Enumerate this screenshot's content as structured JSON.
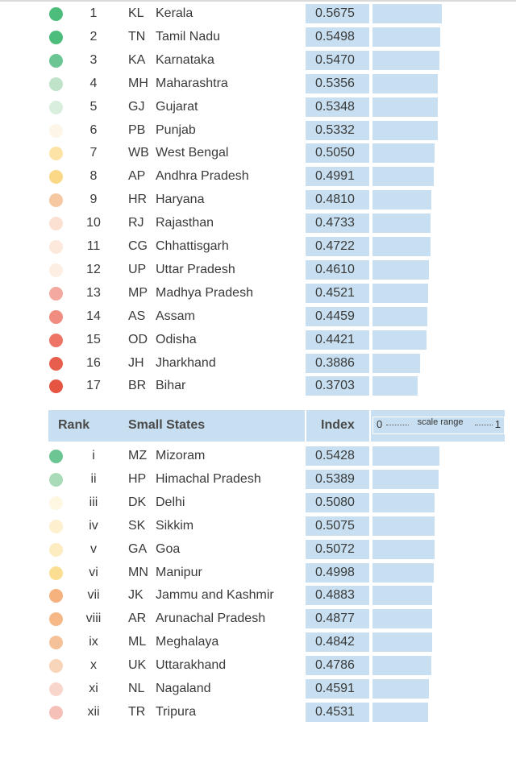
{
  "colors": {
    "bar": "#c7dff0",
    "header_bg": "#c7dff0"
  },
  "small_header": {
    "rank": "Rank",
    "group": "Small States",
    "index": "Index",
    "scale_low": "0",
    "scale_label": "scale range",
    "scale_high": "1"
  },
  "chart_data": [
    {
      "type": "bar",
      "orientation": "horizontal",
      "xlim": [
        0,
        1
      ],
      "rows": [
        {
          "rank": "1",
          "code": "KL",
          "name": "Kerala",
          "index": "0.5675",
          "value": 0.5675,
          "dot_color": "#4dbd7c"
        },
        {
          "rank": "2",
          "code": "TN",
          "name": "Tamil Nadu",
          "index": "0.5498",
          "value": 0.5498,
          "dot_color": "#4dbd7c"
        },
        {
          "rank": "3",
          "code": "KA",
          "name": "Karnataka",
          "index": "0.5470",
          "value": 0.547,
          "dot_color": "#6cc693"
        },
        {
          "rank": "4",
          "code": "MH",
          "name": "Maharashtra",
          "index": "0.5356",
          "value": 0.5356,
          "dot_color": "#bfe3c9"
        },
        {
          "rank": "5",
          "code": "GJ",
          "name": "Gujarat",
          "index": "0.5348",
          "value": 0.5348,
          "dot_color": "#d9eedc"
        },
        {
          "rank": "6",
          "code": "PB",
          "name": "Punjab",
          "index": "0.5332",
          "value": 0.5332,
          "dot_color": "#fdf5e8"
        },
        {
          "rank": "7",
          "code": "WB",
          "name": "West Bengal",
          "index": "0.5050",
          "value": 0.505,
          "dot_color": "#fde4a6"
        },
        {
          "rank": "8",
          "code": "AP",
          "name": "Andhra Pradesh",
          "index": "0.4991",
          "value": 0.4991,
          "dot_color": "#fbd888"
        },
        {
          "rank": "9",
          "code": "HR",
          "name": "Haryana",
          "index": "0.4810",
          "value": 0.481,
          "dot_color": "#f6c8a2"
        },
        {
          "rank": "10",
          "code": "RJ",
          "name": "Rajasthan",
          "index": "0.4733",
          "value": 0.4733,
          "dot_color": "#fbe1d2"
        },
        {
          "rank": "11",
          "code": "CG",
          "name": "Chhattisgarh",
          "index": "0.4722",
          "value": 0.4722,
          "dot_color": "#fde9dc"
        },
        {
          "rank": "12",
          "code": "UP",
          "name": "Uttar Pradesh",
          "index": "0.4610",
          "value": 0.461,
          "dot_color": "#fdeee4"
        },
        {
          "rank": "13",
          "code": "MP",
          "name": "Madhya Pradesh",
          "index": "0.4521",
          "value": 0.4521,
          "dot_color": "#f4a9a0"
        },
        {
          "rank": "14",
          "code": "AS",
          "name": "Assam",
          "index": "0.4459",
          "value": 0.4459,
          "dot_color": "#f08c80"
        },
        {
          "rank": "15",
          "code": "OD",
          "name": "Odisha",
          "index": "0.4421",
          "value": 0.4421,
          "dot_color": "#ee7565"
        },
        {
          "rank": "16",
          "code": "JH",
          "name": "Jharkhand",
          "index": "0.3886",
          "value": 0.3886,
          "dot_color": "#e85e4c"
        },
        {
          "rank": "17",
          "code": "BR",
          "name": "Bihar",
          "index": "0.3703",
          "value": 0.3703,
          "dot_color": "#e65442"
        }
      ]
    },
    {
      "type": "bar",
      "orientation": "horizontal",
      "xlim": [
        0,
        1
      ],
      "rows": [
        {
          "rank": "i",
          "code": "MZ",
          "name": "Mizoram",
          "index": "0.5428",
          "value": 0.5428,
          "dot_color": "#6cc693"
        },
        {
          "rank": "ii",
          "code": "HP",
          "name": "Himachal Pradesh",
          "index": "0.5389",
          "value": 0.5389,
          "dot_color": "#a9dbb8"
        },
        {
          "rank": "iii",
          "code": "DK",
          "name": "Delhi",
          "index": "0.5080",
          "value": 0.508,
          "dot_color": "#fef7e2"
        },
        {
          "rank": "iv",
          "code": "SK",
          "name": "Sikkim",
          "index": "0.5075",
          "value": 0.5075,
          "dot_color": "#fef0cf"
        },
        {
          "rank": "v",
          "code": "GA",
          "name": "Goa",
          "index": "0.5072",
          "value": 0.5072,
          "dot_color": "#fdebc2"
        },
        {
          "rank": "vi",
          "code": "MN",
          "name": "Manipur",
          "index": "0.4998",
          "value": 0.4998,
          "dot_color": "#fbde92"
        },
        {
          "rank": "vii",
          "code": "JK",
          "name": "Jammu and Kashmir",
          "index": "0.4883",
          "value": 0.4883,
          "dot_color": "#f5b27e"
        },
        {
          "rank": "viii",
          "code": "AR",
          "name": "Arunachal Pradesh",
          "index": "0.4877",
          "value": 0.4877,
          "dot_color": "#f5b886"
        },
        {
          "rank": "ix",
          "code": "ML",
          "name": "Meghalaya",
          "index": "0.4842",
          "value": 0.4842,
          "dot_color": "#f5c198"
        },
        {
          "rank": "x",
          "code": "UK",
          "name": "Uttarakhand",
          "index": "0.4786",
          "value": 0.4786,
          "dot_color": "#f8d4b8"
        },
        {
          "rank": "xi",
          "code": "NL",
          "name": "Nagaland",
          "index": "0.4591",
          "value": 0.4591,
          "dot_color": "#f8d6cc"
        },
        {
          "rank": "xii",
          "code": "TR",
          "name": "Tripura",
          "index": "0.4531",
          "value": 0.4531,
          "dot_color": "#f5c0b7"
        }
      ]
    }
  ]
}
